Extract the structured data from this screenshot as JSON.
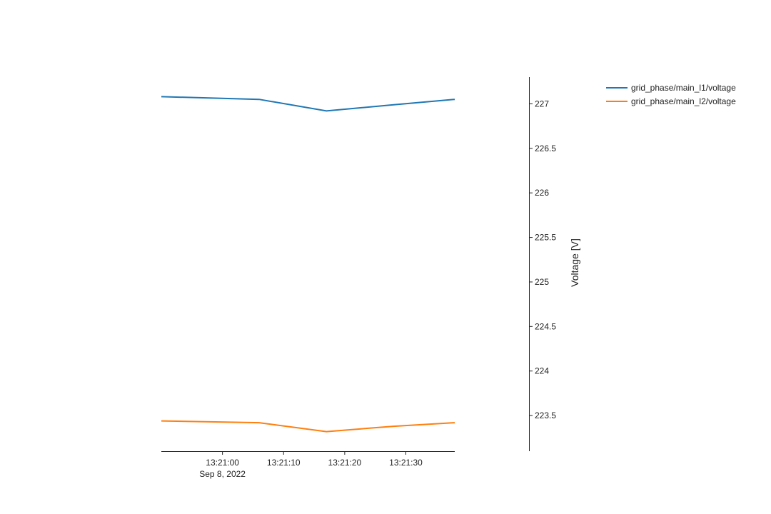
{
  "chart_data": {
    "type": "line",
    "title": "",
    "xlabel": "",
    "ylabel": "Voltage [V]",
    "x": [
      "2022-09-08 13:20:50",
      "2022-09-08 13:21:06",
      "2022-09-08 13:21:17",
      "2022-09-08 13:21:28",
      "2022-09-08 13:21:38"
    ],
    "x_ticks": [
      {
        "time": "2022-09-08 13:21:00",
        "label": "13:21:00",
        "sublabel": "Sep 8, 2022"
      },
      {
        "time": "2022-09-08 13:21:10",
        "label": "13:21:10",
        "sublabel": ""
      },
      {
        "time": "2022-09-08 13:21:20",
        "label": "13:21:20",
        "sublabel": ""
      },
      {
        "time": "2022-09-08 13:21:30",
        "label": "13:21:30",
        "sublabel": ""
      }
    ],
    "xlim": [
      "2022-09-08 13:20:50",
      "2022-09-08 13:21:38"
    ],
    "ylim": [
      223.1,
      227.3
    ],
    "y_ticks": [
      223.5,
      224,
      224.5,
      225,
      225.5,
      226,
      226.5,
      227
    ],
    "y_axis_side": "right",
    "grid": false,
    "legend_position": "top-right",
    "series": [
      {
        "name": "grid_phase/main_l1/voltage",
        "color": "#1f77b4",
        "values": [
          227.08,
          227.05,
          226.92,
          226.99,
          227.05
        ]
      },
      {
        "name": "grid_phase/main_l2/voltage",
        "color": "#ff7f0e",
        "values": [
          223.44,
          223.42,
          223.32,
          223.38,
          223.42
        ]
      }
    ]
  }
}
